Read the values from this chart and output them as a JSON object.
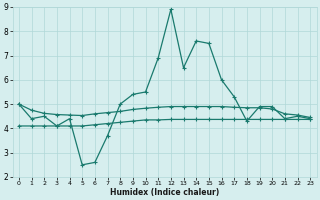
{
  "xlabel": "Humidex (Indice chaleur)",
  "line1_x": [
    0,
    1,
    2,
    3,
    4,
    5,
    6,
    7,
    8,
    9,
    10,
    11,
    12,
    13,
    14,
    15,
    16,
    17,
    18,
    19,
    20,
    21,
    22,
    23
  ],
  "line1_y": [
    5.0,
    4.4,
    4.5,
    4.1,
    4.4,
    2.5,
    2.6,
    3.7,
    5.0,
    5.4,
    5.5,
    6.9,
    8.9,
    6.5,
    7.6,
    7.5,
    6.0,
    5.3,
    4.3,
    4.9,
    4.9,
    4.4,
    4.5,
    4.4
  ],
  "line2_x": [
    0,
    1,
    2,
    3,
    4,
    5,
    6,
    7,
    8,
    9,
    10,
    11,
    12,
    13,
    14,
    15,
    16,
    17,
    18,
    19,
    20,
    21,
    22,
    23
  ],
  "line2_y": [
    4.1,
    4.1,
    4.1,
    4.1,
    4.1,
    4.1,
    4.15,
    4.2,
    4.25,
    4.3,
    4.35,
    4.35,
    4.37,
    4.37,
    4.37,
    4.37,
    4.37,
    4.37,
    4.37,
    4.37,
    4.37,
    4.37,
    4.37,
    4.37
  ],
  "line3_x": [
    0,
    1,
    2,
    3,
    4,
    5,
    6,
    7,
    8,
    9,
    10,
    11,
    12,
    13,
    14,
    15,
    16,
    17,
    18,
    19,
    20,
    21,
    22,
    23
  ],
  "line3_y": [
    5.0,
    4.75,
    4.62,
    4.57,
    4.55,
    4.53,
    4.6,
    4.65,
    4.7,
    4.78,
    4.83,
    4.87,
    4.9,
    4.9,
    4.9,
    4.9,
    4.9,
    4.87,
    4.85,
    4.85,
    4.8,
    4.6,
    4.55,
    4.45
  ],
  "line_color": "#1a7a6e",
  "bg_color": "#d6eeee",
  "grid_color": "#b0d8d8",
  "ylim": [
    2,
    9
  ],
  "xlim": [
    -0.5,
    23.5
  ],
  "yticks": [
    2,
    3,
    4,
    5,
    6,
    7,
    8,
    9
  ],
  "xticks": [
    0,
    1,
    2,
    3,
    4,
    5,
    6,
    7,
    8,
    9,
    10,
    11,
    12,
    13,
    14,
    15,
    16,
    17,
    18,
    19,
    20,
    21,
    22,
    23
  ],
  "marker": "+",
  "markersize": 3.5,
  "linewidth": 0.9
}
